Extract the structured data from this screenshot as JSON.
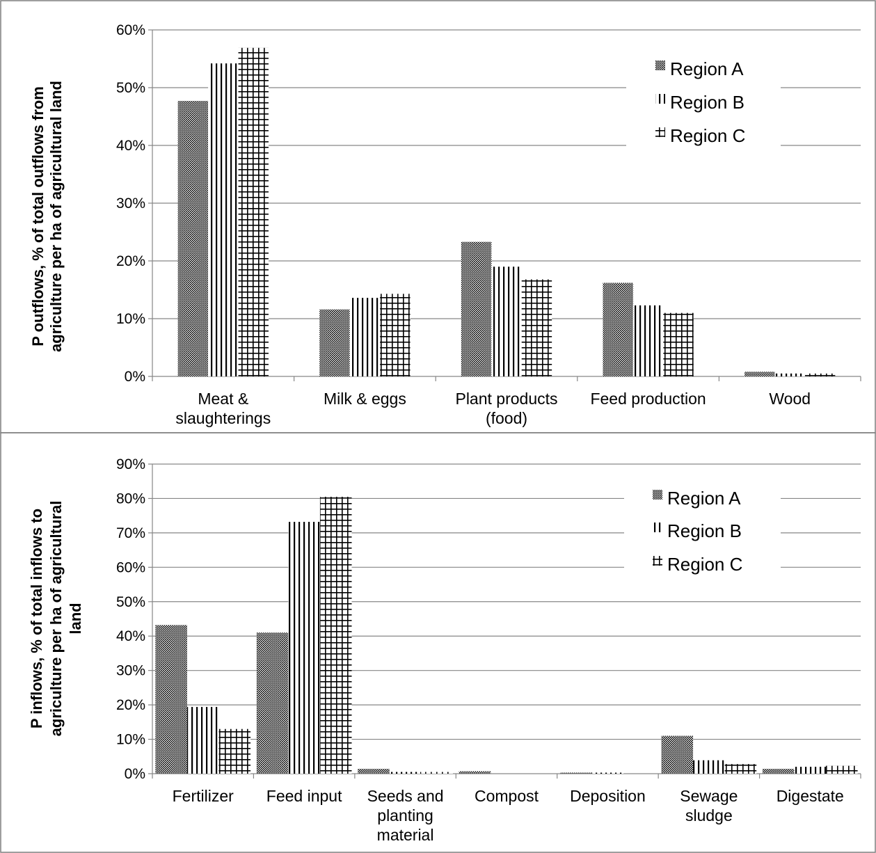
{
  "chart_data": [
    {
      "type": "bar",
      "title": "",
      "ylabel_lines": [
        "P outflows, % of total outflows from",
        "agriculture per ha of agricultural land"
      ],
      "ylim": [
        0,
        60
      ],
      "yticks": [
        "0%",
        "10%",
        "20%",
        "30%",
        "40%",
        "50%",
        "60%"
      ],
      "categories": [
        [
          "Meat &",
          "slaughterings"
        ],
        [
          "Milk & eggs"
        ],
        [
          "Plant products",
          "(food)"
        ],
        [
          "Feed production"
        ],
        [
          "Wood"
        ]
      ],
      "series": [
        {
          "name": "Region A",
          "values": [
            47.7,
            11.6,
            23.3,
            16.2,
            0.8
          ]
        },
        {
          "name": "Region B",
          "values": [
            54.2,
            13.6,
            19.0,
            12.3,
            0.5
          ]
        },
        {
          "name": "Region C",
          "values": [
            56.9,
            14.3,
            16.8,
            11.0,
            0.5
          ]
        }
      ],
      "legend_position": "top-right",
      "grid": true
    },
    {
      "type": "bar",
      "title": "",
      "ylabel_lines": [
        "P inflows, % of total inflows to",
        "agriculture per ha of agricultural",
        "land"
      ],
      "ylim": [
        0,
        90
      ],
      "yticks": [
        "0%",
        "10%",
        "20%",
        "30%",
        "40%",
        "50%",
        "60%",
        "70%",
        "80%",
        "90%"
      ],
      "categories": [
        [
          "Fertilizer"
        ],
        [
          "Feed input"
        ],
        [
          "Seeds and",
          "planting",
          "material"
        ],
        [
          "Compost"
        ],
        [
          "Deposition"
        ],
        [
          "Sewage",
          "sludge"
        ],
        [
          "Digestate"
        ]
      ],
      "series": [
        {
          "name": "Region A",
          "values": [
            43.2,
            41.0,
            1.4,
            0.7,
            0.3,
            11.0,
            1.4
          ]
        },
        {
          "name": "Region B",
          "values": [
            19.4,
            73.2,
            0.5,
            0.0,
            0.3,
            3.9,
            2.0
          ]
        },
        {
          "name": "Region C",
          "values": [
            13.0,
            80.5,
            0.5,
            0.0,
            0.0,
            2.8,
            2.3
          ]
        }
      ],
      "legend_position": "top-right",
      "grid": true
    }
  ],
  "colors": {
    "bar_stroke": "#000000",
    "grid": "#868686",
    "axis": "#868686",
    "frame": "#7f7f7f"
  }
}
